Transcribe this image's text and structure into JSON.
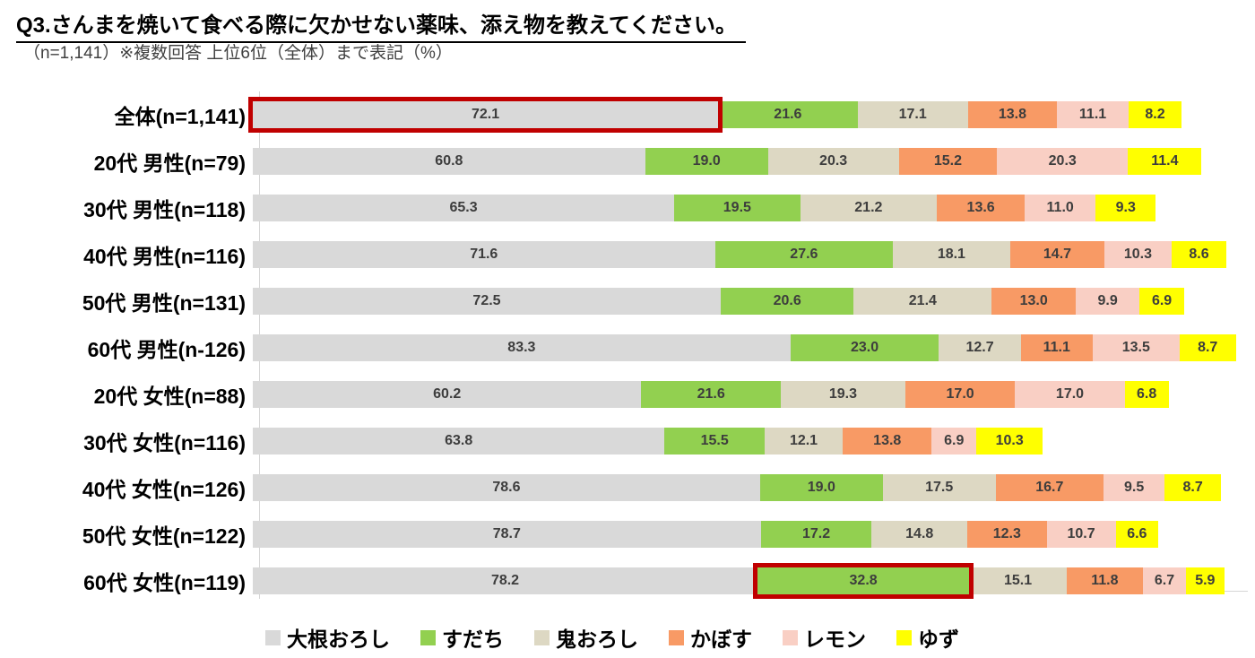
{
  "header": {
    "title": "Q3.さんまを焼いて食べる際に欠かせない薬味、添え物を教えてください。",
    "subtitle": "（n=1,141）※複数回答 上位6位（全体）まで表記（%）"
  },
  "chart_data": {
    "type": "bar",
    "orientation": "horizontal-stacked",
    "value_unit": "%",
    "value_labels": true,
    "xlim": [
      0,
      155
    ],
    "grid": false,
    "legend_position": "bottom",
    "axis_color": "#d6d6d6",
    "categories": [
      "全体(n=1,141)",
      "20代 男性(n=79)",
      "30代 男性(n=118)",
      "40代 男性(n=116)",
      "50代 男性(n=131)",
      "60代 男性(n-126)",
      "20代 女性(n=88)",
      "30代 女性(n=116)",
      "40代 女性(n=126)",
      "50代 女性(n=122)",
      "60代 女性(n=119)"
    ],
    "series": [
      {
        "name": "大根おろし",
        "color": "#d9d9d9",
        "values": [
          72.1,
          60.8,
          65.3,
          71.6,
          72.5,
          83.3,
          60.2,
          63.8,
          78.6,
          78.7,
          78.2
        ]
      },
      {
        "name": "すだち",
        "color": "#92d050",
        "values": [
          21.6,
          19.0,
          19.5,
          27.6,
          20.6,
          23.0,
          21.6,
          15.5,
          19.0,
          17.2,
          32.8
        ]
      },
      {
        "name": "鬼おろし",
        "color": "#ddd8c3",
        "values": [
          17.1,
          20.3,
          21.2,
          18.1,
          21.4,
          12.7,
          19.3,
          12.1,
          17.5,
          14.8,
          15.1
        ]
      },
      {
        "name": "かぼす",
        "color": "#f89a65",
        "values": [
          13.8,
          15.2,
          13.6,
          14.7,
          13.0,
          11.1,
          17.0,
          13.8,
          16.7,
          12.3,
          11.8
        ]
      },
      {
        "name": "レモン",
        "color": "#f9cfc4",
        "values": [
          11.1,
          20.3,
          11.0,
          10.3,
          9.9,
          13.5,
          17.0,
          6.9,
          9.5,
          10.7,
          6.7
        ]
      },
      {
        "name": "ゆず",
        "color": "#ffff00",
        "values": [
          8.2,
          11.4,
          9.3,
          8.6,
          6.9,
          8.7,
          6.8,
          10.3,
          8.7,
          6.6,
          5.9
        ]
      }
    ],
    "highlights": [
      {
        "row": 0,
        "series": 0
      },
      {
        "row": 10,
        "series": 1
      }
    ],
    "highlight_color": "#c00000"
  }
}
